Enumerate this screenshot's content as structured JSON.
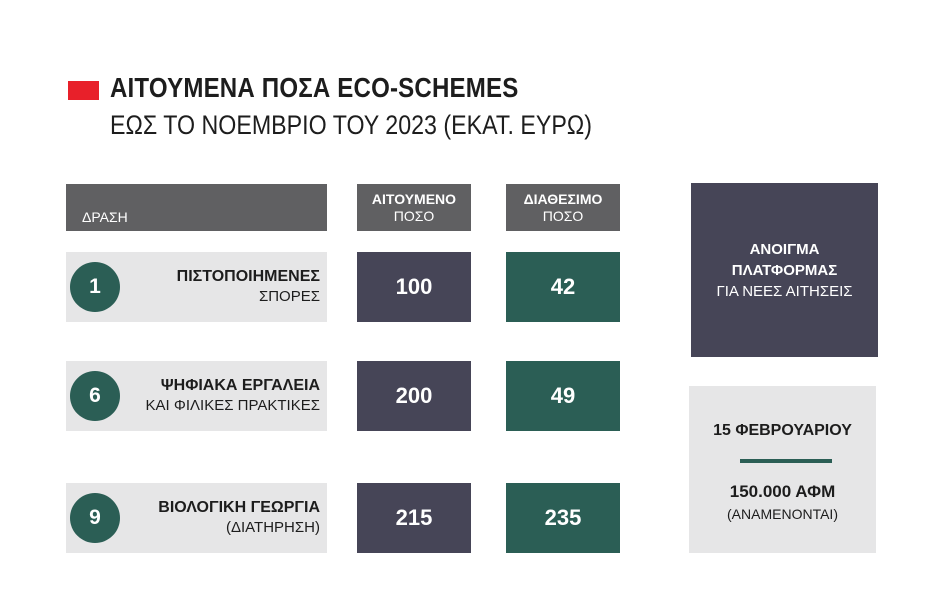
{
  "title": "ΑΙΤΟΥΜΕΝΑ ΠΟΣΑ ECO-SCHEMES",
  "subtitle": "ΕΩΣ ΤΟ ΝΟΕΜΒΡΙΟ ΤΟΥ 2023 (ΕΚΑΤ. ΕΥΡΩ)",
  "colors": {
    "accent": "#e8202a",
    "header": "#606062",
    "requested": "#464557",
    "available": "#2b5e55",
    "row_bg": "#e6e6e7"
  },
  "chart_data": {
    "type": "table",
    "title": "ΑΙΤΟΥΜΕΝΑ ΠΟΣΑ ECO-SCHEMES",
    "subtitle": "ΕΩΣ ΤΟ ΝΟΕΜΒΡΙΟ ΤΟΥ 2023 (ΕΚΑΤ. ΕΥΡΩ)",
    "columns": {
      "action": "ΔΡΑΣΗ",
      "requested": [
        "ΑΙΤΟΥΜΕΝΟ",
        "ΠΟΣΟ"
      ],
      "available": [
        "ΔΙΑΘΕΣΙΜΟ",
        "ΠΟΣΟ"
      ]
    },
    "rows": [
      {
        "number": "1",
        "name_line1": "ΠΙΣΤΟΠΟΙΗΜΕΝΕΣ",
        "name_line2": "ΣΠΟΡΕΣ",
        "requested": 100,
        "available": 42
      },
      {
        "number": "6",
        "name_line1": "ΨΗΦΙΑΚΑ ΕΡΓΑΛΕΙΑ",
        "name_line2": "ΚΑΙ ΦΙΛΙΚΕΣ ΠΡΑΚΤΙΚΕΣ",
        "requested": 200,
        "available": 49
      },
      {
        "number": "9",
        "name_line1": "ΒΙΟΛΟΓΙΚΗ ΓΕΩΡΓΙΑ",
        "name_line2": "(ΔΙΑΤΗΡΗΣΗ)",
        "requested": 215,
        "available": 235
      }
    ]
  },
  "platform": {
    "line1": "ΑΝΟΙΓΜΑ",
    "line2": "ΠΛΑΤΦΟΡΜΑΣ",
    "line3": "ΓΙΑ ΝΕΕΣ ΑΙΤΗΣΕΙΣ"
  },
  "info": {
    "date": "15 ΦΕΒΡΟΥΑΡΙΟΥ",
    "afm": "150.000 ΑΦΜ",
    "expected": "(ΑΝΑΜΕΝΟΝΤΑΙ)"
  }
}
